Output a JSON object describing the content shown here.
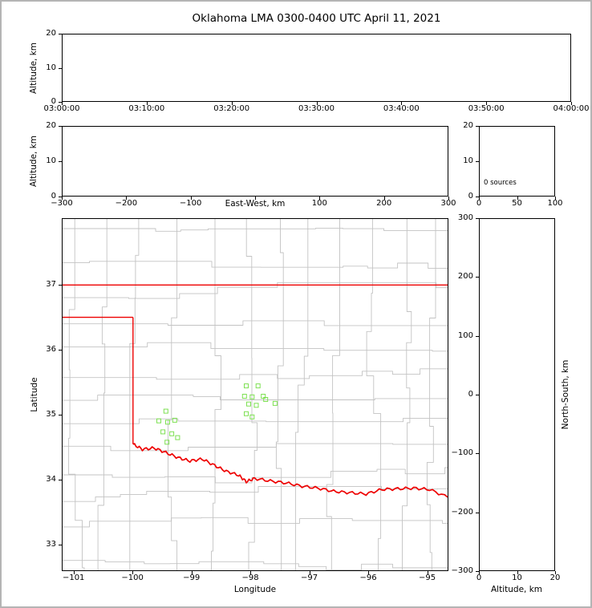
{
  "title": "Oklahoma LMA 0300-0400 UTC April 11, 2021",
  "colors": {
    "state_border": "#ee0000",
    "county_lines": "#c3c3c3",
    "stations": "#7de052",
    "panel_border": "#000000",
    "figure_border": "#b4b4b4"
  },
  "chart_data": [
    {
      "id": "time_height",
      "type": "scatter",
      "ylabel": "Altitude, km",
      "xticks": [
        "03:00:00",
        "03:10:00",
        "03:20:00",
        "03:30:00",
        "03:40:00",
        "03:50:00",
        "04:00:00"
      ],
      "ylim": [
        0,
        20
      ],
      "yticks": [
        0,
        10,
        20
      ],
      "points": []
    },
    {
      "id": "east_west_height",
      "type": "scatter",
      "xlabel": "East-West, km",
      "ylabel": "Altitude, km",
      "xlim": [
        -300,
        300
      ],
      "xticks": [
        -300,
        -200,
        -100,
        0,
        100,
        200,
        300
      ],
      "xticklabels": [
        "−300",
        "−200",
        "−100",
        "",
        "100",
        "200",
        "300"
      ],
      "ylim": [
        0,
        20
      ],
      "yticks": [
        0,
        10,
        20
      ],
      "points": []
    },
    {
      "id": "height_histogram",
      "type": "histogram",
      "annotation": "0 sources",
      "xlim": [
        0,
        100
      ],
      "xticks": [
        0,
        50,
        100
      ],
      "ylim": [
        0,
        20
      ],
      "yticks": [
        0,
        10,
        20
      ],
      "values": []
    },
    {
      "id": "plan_view",
      "type": "scatter",
      "xlabel": "Longitude",
      "ylabel": "Latitude",
      "xlim": [
        -101.2,
        -94.64
      ],
      "xticks": [
        -101,
        -100,
        -99,
        -98,
        -97,
        -96,
        -95
      ],
      "ylim": [
        32.59,
        38.02
      ],
      "yticks": [
        33,
        34,
        35,
        36,
        37
      ],
      "stations": [
        [
          -98.07,
          35.44
        ],
        [
          -97.87,
          35.44
        ],
        [
          -98.1,
          35.28
        ],
        [
          -97.97,
          35.27
        ],
        [
          -97.78,
          35.28
        ],
        [
          -98.03,
          35.16
        ],
        [
          -97.9,
          35.14
        ],
        [
          -97.74,
          35.23
        ],
        [
          -97.58,
          35.17
        ],
        [
          -98.07,
          35.01
        ],
        [
          -97.97,
          34.96
        ],
        [
          -99.44,
          35.05
        ],
        [
          -99.56,
          34.9
        ],
        [
          -99.41,
          34.88
        ],
        [
          -99.29,
          34.91
        ],
        [
          -99.49,
          34.73
        ],
        [
          -99.34,
          34.7
        ],
        [
          -99.42,
          34.57
        ],
        [
          -99.24,
          34.64
        ]
      ],
      "state_border": {
        "north_lat": 37.0,
        "panhandle_south_lat": 36.5,
        "west_lon": -100.0,
        "red_river": [
          [
            -100.0,
            34.54
          ],
          [
            -99.84,
            34.46
          ],
          [
            -99.64,
            34.48
          ],
          [
            -99.44,
            34.41
          ],
          [
            -99.23,
            34.33
          ],
          [
            -99.03,
            34.28
          ],
          [
            -98.82,
            34.31
          ],
          [
            -98.61,
            34.21
          ],
          [
            -98.41,
            34.12
          ],
          [
            -98.2,
            34.06
          ],
          [
            -98.07,
            33.96
          ],
          [
            -97.93,
            34.01
          ],
          [
            -97.66,
            33.97
          ],
          [
            -97.39,
            33.94
          ],
          [
            -97.12,
            33.89
          ],
          [
            -96.85,
            33.86
          ],
          [
            -96.58,
            33.81
          ],
          [
            -96.31,
            33.79
          ],
          [
            -96.03,
            33.77
          ],
          [
            -95.76,
            33.84
          ],
          [
            -95.49,
            33.85
          ],
          [
            -95.22,
            33.86
          ],
          [
            -94.95,
            33.84
          ],
          [
            -94.64,
            33.72
          ]
        ]
      }
    },
    {
      "id": "north_south_height",
      "type": "scatter",
      "xlabel": "Altitude, km",
      "ylabel": "North-South, km",
      "xlim": [
        0,
        20
      ],
      "xticks": [
        0,
        10,
        20
      ],
      "ylim": [
        -300,
        300
      ],
      "yticks": [
        300,
        200,
        100,
        0,
        -100,
        -200,
        -300
      ],
      "points": []
    }
  ]
}
